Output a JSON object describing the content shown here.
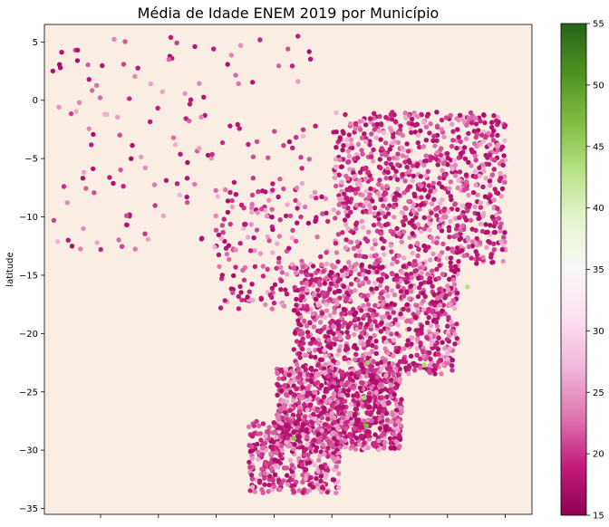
{
  "chart_data": {
    "type": "scatter",
    "title": "Média de Idade ENEM 2019 por Município",
    "xlabel": "",
    "ylabel": "latitude",
    "xlim": [
      -75.5,
      -32.5
    ],
    "ylim": [
      -35.5,
      6.5
    ],
    "yticks": [
      5,
      0,
      -5,
      -10,
      -15,
      -20,
      -25,
      -30,
      -35
    ],
    "ytick_labels": [
      "5",
      "0",
      "−5",
      "−10",
      "−15",
      "−20",
      "−25",
      "−30",
      "−35"
    ],
    "xticks_unlabeled": 8,
    "plot_background": "#faeee4",
    "grid": false,
    "colorbar": {
      "cmap": "PiYG",
      "min": 15,
      "max": 55,
      "ticks": [
        15,
        20,
        25,
        30,
        35,
        40,
        45,
        50,
        55
      ],
      "tick_labels": [
        "15",
        "20",
        "25",
        "30",
        "35",
        "40",
        "45",
        "50",
        "55"
      ]
    },
    "series": [
      {
        "color_value_range": [
          17,
          27
        ],
        "regions": [
          {
            "lon": [
              -75.0,
              -51.5
            ],
            "lat": [
              -13.0,
              5.5
            ],
            "density": "sparse"
          },
          {
            "lon": [
              -60.5,
              -50.5
            ],
            "lat": [
              -18.0,
              -7.5
            ],
            "density": "sparse"
          },
          {
            "lon": [
              -50.0,
              -34.8
            ],
            "lat": [
              -14.0,
              -1.0
            ],
            "density": "dense"
          },
          {
            "lon": [
              -53.5,
              -39.0
            ],
            "lat": [
              -23.5,
              -14.0
            ],
            "density": "dense"
          },
          {
            "lon": [
              -55.0,
              -44.0
            ],
            "lat": [
              -30.0,
              -23.0
            ],
            "density": "dense"
          },
          {
            "lon": [
              -57.5,
              -49.5
            ],
            "lat": [
              -33.7,
              -27.5
            ],
            "density": "medium"
          }
        ],
        "outliers": [
          {
            "lon": -47.0,
            "lat": -22.5,
            "value": 45
          },
          {
            "lon": -47.3,
            "lat": -25.5,
            "value": 44
          },
          {
            "lon": -47.1,
            "lat": -27.9,
            "value": 47
          },
          {
            "lon": -53.5,
            "lat": -29.0,
            "value": 46
          },
          {
            "lon": -42.0,
            "lat": -22.7,
            "value": 44
          },
          {
            "lon": -38.2,
            "lat": -16.0,
            "value": 43
          }
        ]
      }
    ]
  }
}
